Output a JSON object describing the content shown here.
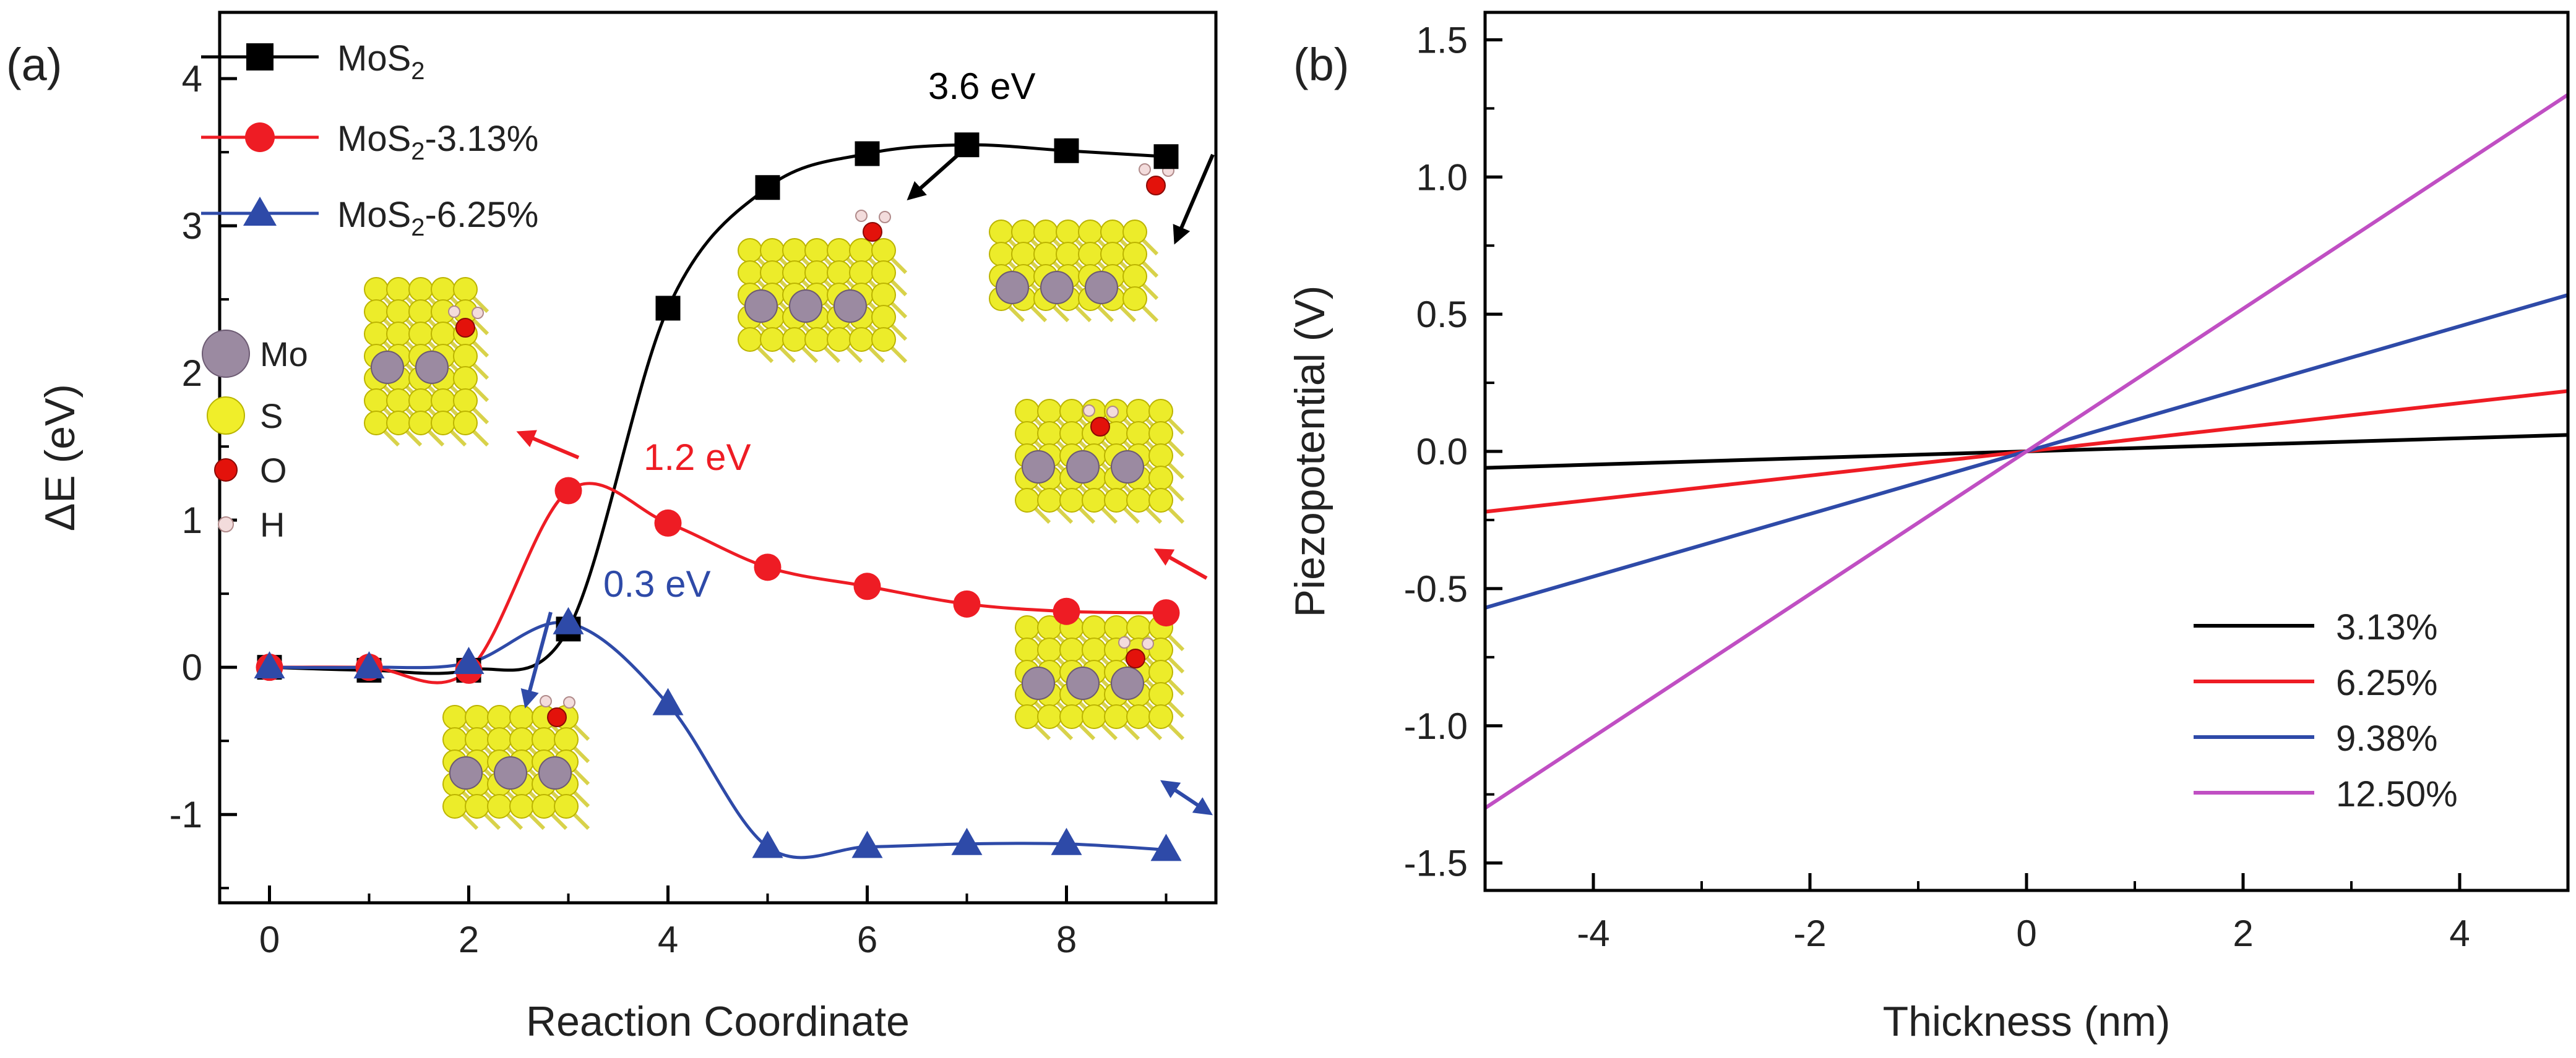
{
  "chart_data": [
    {
      "panel": "(a)",
      "type": "line",
      "xlabel": "Reaction Coordinate",
      "ylabel": "ΔE (eV)",
      "xlim": [
        -0.5,
        9.5
      ],
      "ylim": [
        -1.6,
        4.45
      ],
      "xticks": [
        0,
        2,
        4,
        6,
        8
      ],
      "yticks": [
        -1,
        0,
        1,
        2,
        3,
        4
      ],
      "x": [
        0,
        1,
        2,
        3,
        4,
        5,
        6,
        7,
        8,
        9
      ],
      "series": [
        {
          "name": "MoS",
          "sub": "2",
          "suffix": "",
          "color": "#000000",
          "marker": "square",
          "values": [
            0.0,
            -0.02,
            -0.02,
            0.26,
            2.44,
            3.26,
            3.49,
            3.55,
            3.51,
            3.47
          ]
        },
        {
          "name": "MoS",
          "sub": "2",
          "suffix": "-3.13%",
          "color": "#ee1c24",
          "marker": "circle",
          "values": [
            0.0,
            0.0,
            -0.02,
            1.2,
            0.98,
            0.68,
            0.55,
            0.43,
            0.38,
            0.37
          ]
        },
        {
          "name": "MoS",
          "sub": "2",
          "suffix": "-6.25%",
          "color": "#2e4aa8",
          "marker": "triangle",
          "values": [
            0.0,
            0.0,
            0.03,
            0.3,
            -0.25,
            -1.22,
            -1.22,
            -1.2,
            -1.2,
            -1.24
          ]
        }
      ],
      "annotations": [
        {
          "text": "3.6 eV",
          "color": "#000000"
        },
        {
          "text": "1.2 eV",
          "color": "#ee1c24"
        },
        {
          "text": "0.3 eV",
          "color": "#2e4aa8"
        }
      ],
      "atom_key": [
        {
          "label": "Mo",
          "color": "#9b8aa1"
        },
        {
          "label": "S",
          "color": "#f0ee2a"
        },
        {
          "label": "O",
          "color": "#e3120b"
        },
        {
          "label": "H",
          "color": "#f3dcdc"
        }
      ]
    },
    {
      "panel": "(b)",
      "type": "line",
      "xlabel": "Thickness (nm)",
      "ylabel": "Piezopotential (V)",
      "xlim": [
        -5,
        5
      ],
      "ylim": [
        -1.6,
        1.6
      ],
      "xticks": [
        -4,
        -2,
        0,
        2,
        4
      ],
      "yticks": [
        -1.5,
        -1.0,
        -0.5,
        0.0,
        0.5,
        1.0,
        1.5
      ],
      "ytick_labels": [
        "-1.5",
        "-1.0",
        "-0.5",
        "0.0",
        "0.5",
        "1.0",
        "1.5"
      ],
      "x": [
        -5,
        5
      ],
      "series": [
        {
          "name": "3.13%",
          "color": "#000000",
          "values": [
            -0.06,
            0.06
          ]
        },
        {
          "name": "6.25%",
          "color": "#ee1c24",
          "values": [
            -0.22,
            0.22
          ]
        },
        {
          "name": "9.38%",
          "color": "#2e4aa8",
          "values": [
            -0.57,
            0.57
          ]
        },
        {
          "name": "12.50%",
          "color": "#c04fc3",
          "values": [
            -1.3,
            1.3
          ]
        }
      ]
    }
  ]
}
